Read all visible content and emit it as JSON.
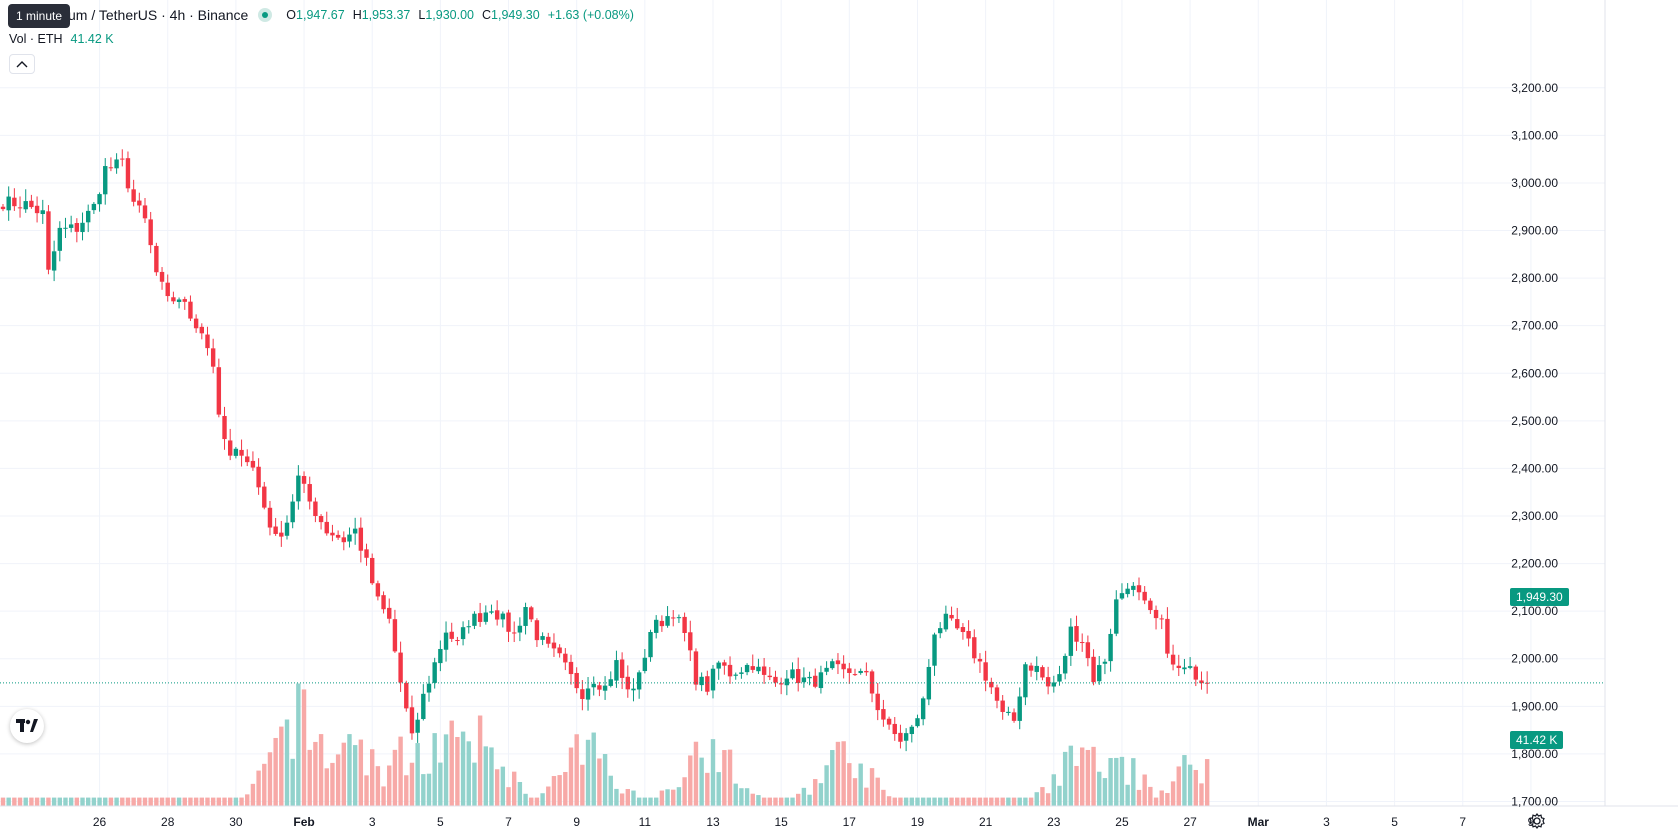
{
  "header": {
    "symbol_title": "um / TetherUS · 4h · Binance",
    "tooltip": "1 minute",
    "ohlc": [
      {
        "k": "O",
        "v": "1,947.67"
      },
      {
        "k": "H",
        "v": "1,953.37"
      },
      {
        "k": "L",
        "v": "1,930.00"
      },
      {
        "k": "C",
        "v": "1,949.30"
      }
    ],
    "change": "+1.63 (+0.08%)"
  },
  "volume_legend": {
    "label": "Vol · ETH",
    "value": "41.42 K"
  },
  "badges": {
    "last_price": "1,949.30",
    "last_volume": "41.42 K"
  },
  "colors": {
    "up": "#089981",
    "down": "#f23645",
    "up_vol": "#92d2cc",
    "down_vol": "#f7a9a7",
    "grid": "#f0f3fa"
  },
  "icons": {
    "logo": "tradingview-logo-icon",
    "settings": "settings-icon",
    "collapse": "chevron-up-icon"
  },
  "chart_data": {
    "type": "candlestick",
    "interval": "4h",
    "y_axis": {
      "ticks": [
        1700,
        1800,
        1900,
        2000,
        2100,
        2200,
        2300,
        2400,
        2500,
        2600,
        2700,
        2800,
        2900,
        3000,
        3100,
        3200
      ],
      "tick_labels": [
        "1,700.00",
        "1,800.00",
        "1,900.00",
        "2,000.00",
        "2,100.00",
        "2,200.00",
        "2,300.00",
        "2,400.00",
        "2,500.00",
        "2,600.00",
        "2,700.00",
        "2,800.00",
        "2,900.00",
        "3,000.00",
        "3,100.00",
        "3,200.00"
      ],
      "range": [
        1680,
        3220
      ]
    },
    "x_axis": {
      "ticks": [
        {
          "label": "26",
          "bar": 17
        },
        {
          "label": "28",
          "bar": 29
        },
        {
          "label": "30",
          "bar": 41
        },
        {
          "label": "Feb",
          "bar": 53,
          "bold": true
        },
        {
          "label": "3",
          "bar": 65
        },
        {
          "label": "5",
          "bar": 77
        },
        {
          "label": "7",
          "bar": 89
        },
        {
          "label": "9",
          "bar": 101
        },
        {
          "label": "11",
          "bar": 113
        },
        {
          "label": "13",
          "bar": 125
        },
        {
          "label": "15",
          "bar": 137
        },
        {
          "label": "17",
          "bar": 149
        },
        {
          "label": "19",
          "bar": 161
        },
        {
          "label": "21",
          "bar": 173
        },
        {
          "label": "23",
          "bar": 185
        },
        {
          "label": "25",
          "bar": 197
        },
        {
          "label": "27",
          "bar": 209
        },
        {
          "label": "Mar",
          "bar": 221,
          "bold": true
        },
        {
          "label": "3",
          "bar": 233
        },
        {
          "label": "5",
          "bar": 245
        },
        {
          "label": "7",
          "bar": 257
        },
        {
          "label": "9",
          "bar": 269
        }
      ]
    },
    "last_price": 1949.3,
    "close_anchors": [
      [
        0,
        2960
      ],
      [
        4,
        2955
      ],
      [
        7,
        2935
      ],
      [
        8,
        2810
      ],
      [
        10,
        2900
      ],
      [
        13,
        2905
      ],
      [
        16,
        2950
      ],
      [
        18,
        3030
      ],
      [
        21,
        3040
      ],
      [
        23,
        2960
      ],
      [
        25,
        2920
      ],
      [
        27,
        2810
      ],
      [
        29,
        2750
      ],
      [
        31,
        2760
      ],
      [
        33,
        2720
      ],
      [
        35,
        2690
      ],
      [
        37,
        2620
      ],
      [
        38,
        2500
      ],
      [
        40,
        2420
      ],
      [
        42,
        2440
      ],
      [
        44,
        2400
      ],
      [
        46,
        2320
      ],
      [
        48,
        2250
      ],
      [
        50,
        2290
      ],
      [
        52,
        2380
      ],
      [
        54,
        2330
      ],
      [
        57,
        2270
      ],
      [
        60,
        2250
      ],
      [
        62,
        2270
      ],
      [
        64,
        2200
      ],
      [
        66,
        2120
      ],
      [
        68,
        2080
      ],
      [
        70,
        1950
      ],
      [
        72,
        1830
      ],
      [
        74,
        1920
      ],
      [
        76,
        1990
      ],
      [
        78,
        2060
      ],
      [
        80,
        2030
      ],
      [
        82,
        2080
      ],
      [
        84,
        2090
      ],
      [
        86,
        2110
      ],
      [
        88,
        2080
      ],
      [
        90,
        2050
      ],
      [
        92,
        2110
      ],
      [
        94,
        2050
      ],
      [
        96,
        2020
      ],
      [
        98,
        2000
      ],
      [
        100,
        1960
      ],
      [
        102,
        1930
      ],
      [
        104,
        1960
      ],
      [
        106,
        1940
      ],
      [
        108,
        1990
      ],
      [
        110,
        1930
      ],
      [
        112,
        1960
      ],
      [
        114,
        2060
      ],
      [
        116,
        2080
      ],
      [
        118,
        2100
      ],
      [
        120,
        2050
      ],
      [
        122,
        1960
      ],
      [
        124,
        1940
      ],
      [
        126,
        1990
      ],
      [
        128,
        1970
      ],
      [
        130,
        1980
      ],
      [
        132,
        1990
      ],
      [
        134,
        1960
      ],
      [
        136,
        1950
      ],
      [
        138,
        1970
      ],
      [
        140,
        1960
      ],
      [
        142,
        1950
      ],
      [
        144,
        1960
      ],
      [
        146,
        1980
      ],
      [
        148,
        1970
      ],
      [
        150,
        1975
      ],
      [
        152,
        1960
      ],
      [
        154,
        1900
      ],
      [
        156,
        1850
      ],
      [
        158,
        1830
      ],
      [
        160,
        1850
      ],
      [
        162,
        1910
      ],
      [
        164,
        2060
      ],
      [
        166,
        2080
      ],
      [
        168,
        2060
      ],
      [
        170,
        2030
      ],
      [
        172,
        1990
      ],
      [
        174,
        1940
      ],
      [
        176,
        1880
      ],
      [
        178,
        1870
      ],
      [
        180,
        1990
      ],
      [
        182,
        1980
      ],
      [
        184,
        1940
      ],
      [
        186,
        1960
      ],
      [
        188,
        2060
      ],
      [
        190,
        2040
      ],
      [
        192,
        1960
      ],
      [
        194,
        2000
      ],
      [
        196,
        2120
      ],
      [
        198,
        2160
      ],
      [
        200,
        2130
      ],
      [
        202,
        2090
      ],
      [
        204,
        2070
      ],
      [
        206,
        1980
      ],
      [
        208,
        1975
      ],
      [
        210,
        1970
      ],
      [
        212,
        1949.3
      ]
    ],
    "volume_peaks": [
      [
        52,
        74
      ],
      [
        61,
        56
      ],
      [
        72,
        47
      ],
      [
        78,
        56
      ],
      [
        84,
        54
      ],
      [
        103,
        48
      ],
      [
        124,
        52
      ],
      [
        148,
        43
      ],
      [
        190,
        42
      ],
      [
        196,
        36
      ],
      [
        210,
        36
      ]
    ]
  }
}
